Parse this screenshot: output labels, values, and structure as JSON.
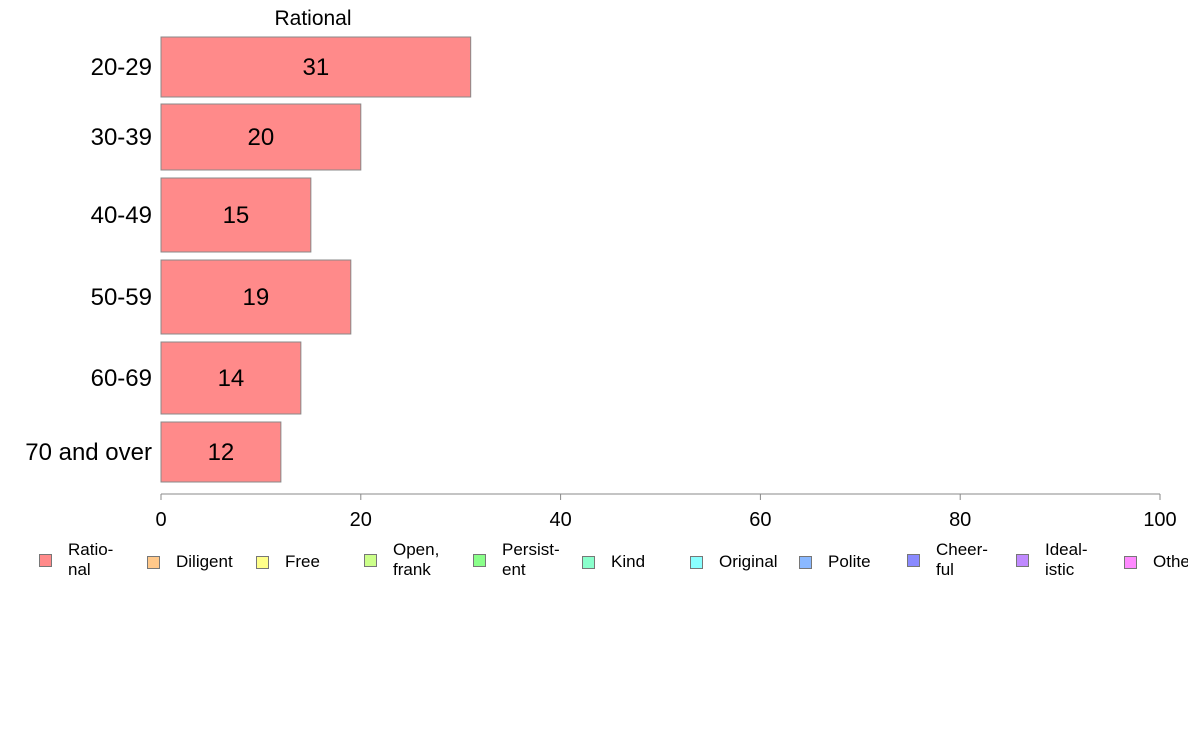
{
  "chart_data": {
    "type": "bar",
    "orientation": "horizontal",
    "title": "Rational",
    "categories": [
      "20-29",
      "30-39",
      "40-49",
      "50-59",
      "60-69",
      "70 and over"
    ],
    "series": [
      {
        "name": "Ratio-\nnal",
        "values": [
          31,
          20,
          15,
          19,
          14,
          12
        ],
        "color": "#ff8a8a"
      }
    ],
    "data_labels": [
      "31",
      "20",
      "15",
      "19",
      "14",
      "12"
    ],
    "xlim": [
      0,
      100
    ],
    "xticks": [
      0,
      20,
      40,
      60,
      80,
      100
    ],
    "grid": false,
    "legend_position": "bottom"
  },
  "legend": {
    "items": [
      {
        "label": "Ratio-\nnal",
        "color": "#ff8a8a"
      },
      {
        "label": "Diligent",
        "color": "#ffc88a"
      },
      {
        "label": "Free",
        "color": "#ffff8a"
      },
      {
        "label": "Open,\nfrank",
        "color": "#ccff8a"
      },
      {
        "label": "Persist-\nent",
        "color": "#8aff8a"
      },
      {
        "label": "Kind",
        "color": "#8affcc"
      },
      {
        "label": "Original",
        "color": "#8affff"
      },
      {
        "label": "Polite",
        "color": "#8ab8ff"
      },
      {
        "label": "Cheer-\nful",
        "color": "#8a8aff"
      },
      {
        "label": "Ideal-\nistic",
        "color": "#c08aff"
      },
      {
        "label": "Other",
        "color": "#ff8aff"
      }
    ]
  },
  "colors": {
    "axis": "#888888",
    "bar_border": "#888888"
  }
}
